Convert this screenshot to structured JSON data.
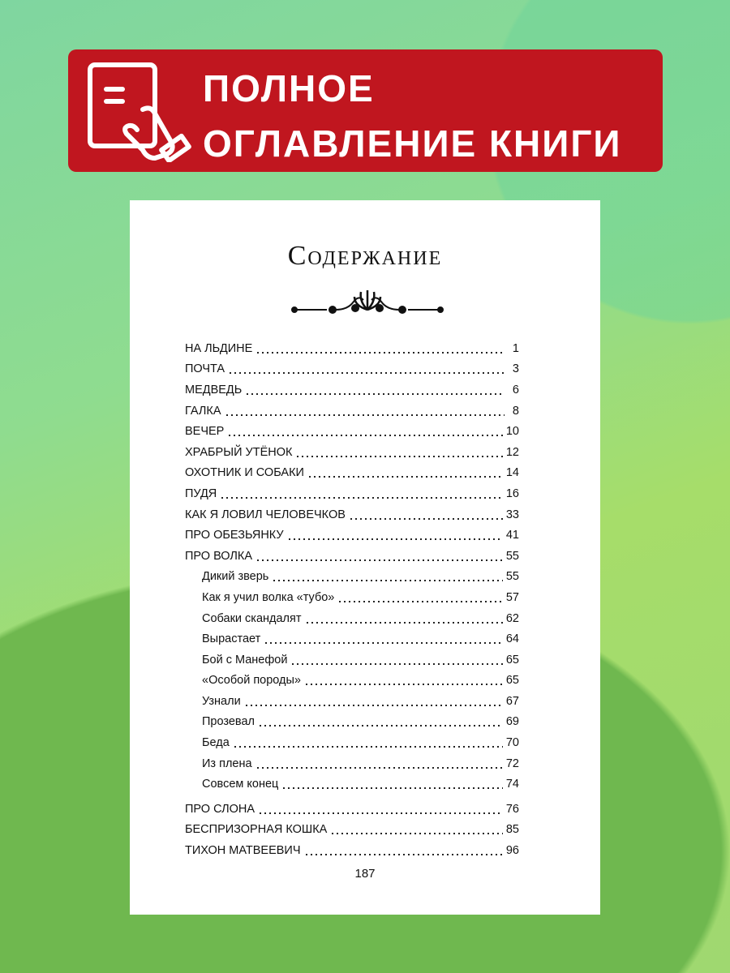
{
  "banner": {
    "line1": "ПОЛНОЕ",
    "line2": "ОГЛАВЛЕНИЕ КНИГИ",
    "icon": "document-hand-icon",
    "color": "#c0161f"
  },
  "page": {
    "title": "Содержание",
    "page_number": "187"
  },
  "toc": [
    {
      "title": "НА ЛЬДИНЕ",
      "page": "1"
    },
    {
      "title": "ПОЧТА",
      "page": "3"
    },
    {
      "title": "МЕДВЕДЬ",
      "page": "6"
    },
    {
      "title": "ГАЛКА",
      "page": "8"
    },
    {
      "title": "ВЕЧЕР",
      "page": "10"
    },
    {
      "title": "ХРАБРЫЙ УТЁНОК",
      "page": "12"
    },
    {
      "title": "ОХОТНИК И СОБАКИ",
      "page": "14"
    },
    {
      "title": "ПУДЯ",
      "page": "16"
    },
    {
      "title": "КАК Я ЛОВИЛ ЧЕЛОВЕЧКОВ",
      "page": "33"
    },
    {
      "title": "ПРО ОБЕЗЬЯНКУ",
      "page": "41"
    },
    {
      "title": "ПРО ВОЛКА",
      "page": "55"
    },
    {
      "title": "Дикий зверь",
      "page": "55",
      "sub": true
    },
    {
      "title": "Как я учил волка «тубо»",
      "page": "57",
      "sub": true
    },
    {
      "title": "Собаки скандалят",
      "page": "62",
      "sub": true
    },
    {
      "title": "Вырастает",
      "page": "64",
      "sub": true
    },
    {
      "title": "Бой с Манефой",
      "page": "65",
      "sub": true
    },
    {
      "title": "«Особой породы»",
      "page": "65",
      "sub": true
    },
    {
      "title": "Узнали",
      "page": "67",
      "sub": true
    },
    {
      "title": "Прозевал",
      "page": "69",
      "sub": true
    },
    {
      "title": "Беда",
      "page": "70",
      "sub": true
    },
    {
      "title": "Из плена",
      "page": "72",
      "sub": true
    },
    {
      "title": "Совсем конец",
      "page": "74",
      "sub": true
    },
    {
      "title": "ПРО СЛОНА",
      "page": "76"
    },
    {
      "title": "БЕСПРИЗОРНАЯ КОШКА",
      "page": "85"
    },
    {
      "title": "ТИХОН МАТВЕЕВИЧ",
      "page": "96"
    }
  ]
}
